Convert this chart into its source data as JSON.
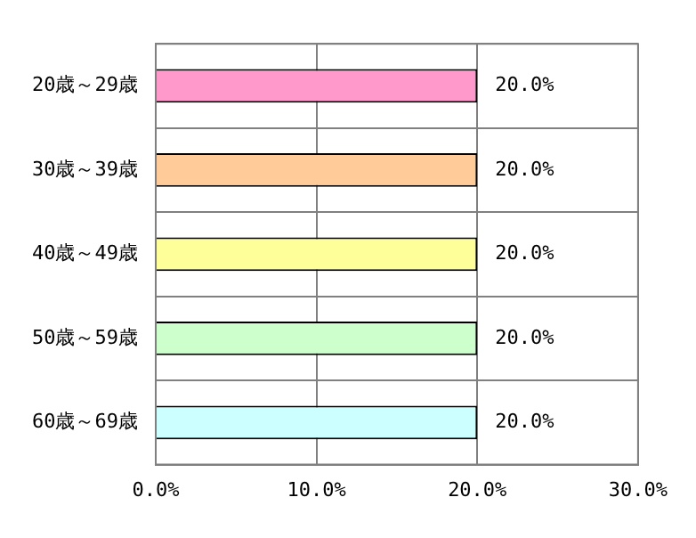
{
  "chart_data": {
    "type": "bar",
    "orientation": "horizontal",
    "categories": [
      "20歳～29歳",
      "30歳～39歳",
      "40歳～49歳",
      "50歳～59歳",
      "60歳～69歳"
    ],
    "values": [
      20,
      20,
      20,
      20,
      20
    ],
    "colors": [
      "#ff99cc",
      "#ffcc99",
      "#ffff99",
      "#ccffcc",
      "#ccffff"
    ],
    "value_labels": [
      "20.0%",
      "20.0%",
      "20.0%",
      "20.0%",
      "20.0%"
    ],
    "xlim": [
      0,
      30
    ],
    "xticks": [
      {
        "value": 0,
        "label": "0.0%"
      },
      {
        "value": 10,
        "label": "10.0%"
      },
      {
        "value": 20,
        "label": "20.0%"
      },
      {
        "value": 30,
        "label": "30.0%"
      }
    ],
    "grid": true,
    "legend": false
  }
}
